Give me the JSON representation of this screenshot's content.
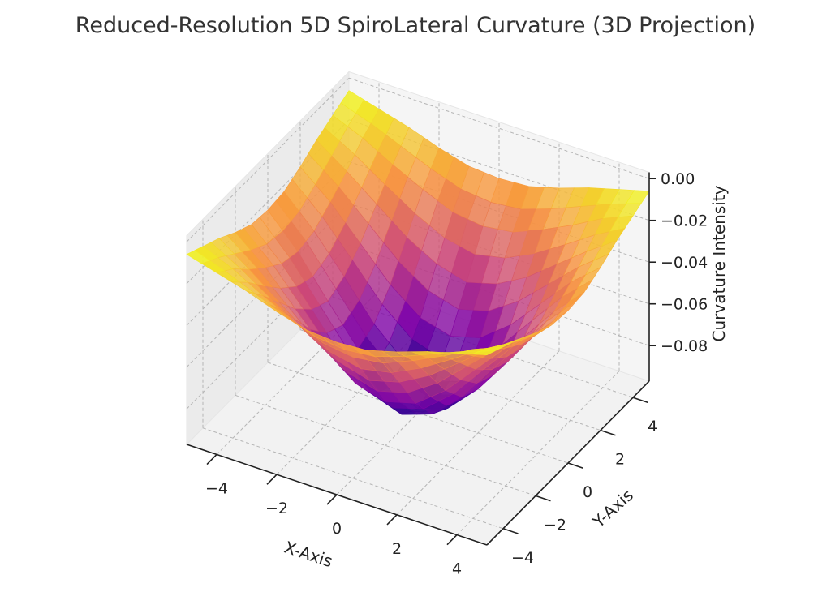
{
  "chart_data": {
    "type": "surface",
    "title": "Reduced-Resolution 5D SpiroLateral Curvature (3D Projection)",
    "xlabel": "X-Axis",
    "ylabel": "Y-Axis",
    "zlabel": "Curvature Intensity",
    "colormap": "plasma",
    "colormap_stops": [
      "#0d0887",
      "#7e03a8",
      "#cc4778",
      "#f89540",
      "#f0f921"
    ],
    "grid": true,
    "xlim": [
      -5,
      5
    ],
    "ylim": [
      -5,
      5
    ],
    "zlim": [
      -0.097,
      0.003
    ],
    "x_ticks": [
      "−4",
      "−2",
      "0",
      "2",
      "4"
    ],
    "x_tick_values": [
      -4,
      -2,
      0,
      2,
      4
    ],
    "y_ticks": [
      "−4",
      "−2",
      "0",
      "2",
      "4"
    ],
    "y_tick_values": [
      -4,
      -2,
      0,
      2,
      4
    ],
    "z_ticks": [
      "0.00",
      "−0.02",
      "−0.04",
      "−0.06",
      "−0.08"
    ],
    "z_tick_values": [
      0,
      -0.02,
      -0.04,
      -0.06,
      -0.08
    ],
    "x": [
      -5,
      -4,
      -3,
      -2,
      -1,
      0,
      1,
      2,
      3,
      4,
      5
    ],
    "y": [
      -5,
      -4,
      -3,
      -2,
      -1,
      0,
      1,
      2,
      3,
      4,
      5
    ],
    "z": [
      [
        -0.006,
        -0.01,
        -0.014,
        -0.019,
        -0.023,
        -0.024,
        -0.023,
        -0.019,
        -0.014,
        -0.01,
        -0.006
      ],
      [
        -0.01,
        -0.016,
        -0.024,
        -0.031,
        -0.037,
        -0.039,
        -0.037,
        -0.031,
        -0.024,
        -0.016,
        -0.01
      ],
      [
        -0.014,
        -0.024,
        -0.035,
        -0.046,
        -0.054,
        -0.058,
        -0.054,
        -0.046,
        -0.035,
        -0.024,
        -0.014
      ],
      [
        -0.019,
        -0.031,
        -0.046,
        -0.061,
        -0.072,
        -0.076,
        -0.072,
        -0.061,
        -0.046,
        -0.031,
        -0.019
      ],
      [
        -0.023,
        -0.037,
        -0.054,
        -0.072,
        -0.085,
        -0.09,
        -0.085,
        -0.072,
        -0.054,
        -0.037,
        -0.023
      ],
      [
        -0.024,
        -0.039,
        -0.058,
        -0.076,
        -0.09,
        -0.095,
        -0.09,
        -0.076,
        -0.058,
        -0.039,
        -0.024
      ],
      [
        -0.023,
        -0.037,
        -0.054,
        -0.072,
        -0.085,
        -0.09,
        -0.085,
        -0.072,
        -0.054,
        -0.037,
        -0.023
      ],
      [
        -0.019,
        -0.031,
        -0.046,
        -0.061,
        -0.072,
        -0.076,
        -0.072,
        -0.061,
        -0.046,
        -0.031,
        -0.019
      ],
      [
        -0.014,
        -0.024,
        -0.035,
        -0.046,
        -0.054,
        -0.058,
        -0.054,
        -0.046,
        -0.035,
        -0.024,
        -0.014
      ],
      [
        -0.01,
        -0.016,
        -0.024,
        -0.031,
        -0.037,
        -0.039,
        -0.037,
        -0.031,
        -0.024,
        -0.016,
        -0.01
      ],
      [
        -0.006,
        -0.01,
        -0.014,
        -0.019,
        -0.023,
        -0.024,
        -0.023,
        -0.019,
        -0.014,
        -0.01,
        -0.006
      ]
    ]
  }
}
